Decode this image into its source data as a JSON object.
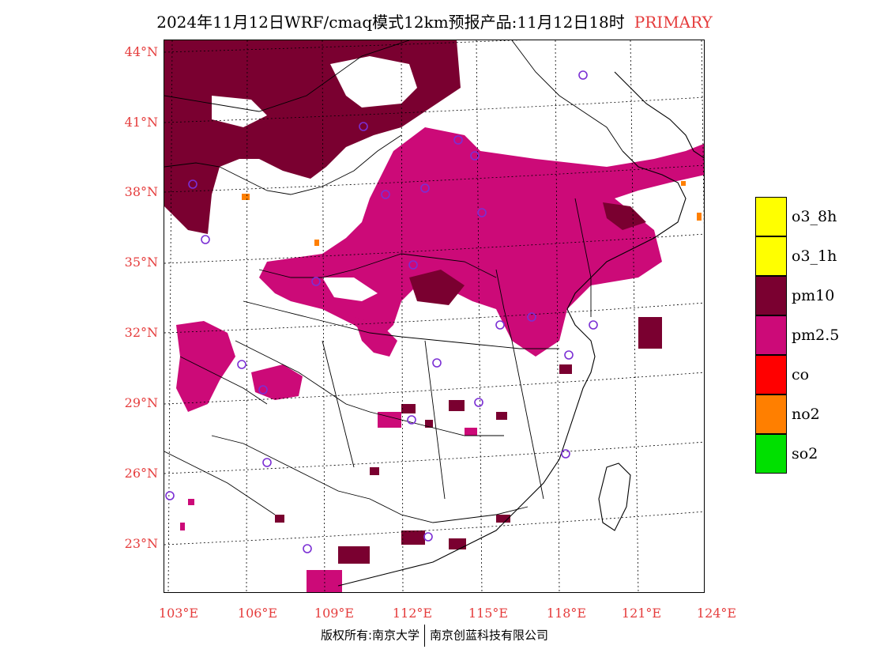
{
  "title": {
    "main": "2024年11月12日WRF/cmaq模式12km预报产品:11月12日18时",
    "tag": "PRIMARY",
    "tag_color": "#e53c3c"
  },
  "axes": {
    "lat_labels": [
      "44°N",
      "41°N",
      "38°N",
      "35°N",
      "32°N",
      "29°N",
      "26°N",
      "23°N"
    ],
    "lon_labels": [
      "103°E",
      "106°E",
      "109°E",
      "112°E",
      "115°E",
      "118°E",
      "121°E",
      "124°E"
    ],
    "label_color": "#e53c3c"
  },
  "legend": [
    {
      "label": "o3_8h",
      "color": "#ffff00"
    },
    {
      "label": "o3_1h",
      "color": "#ffff00"
    },
    {
      "label": "pm10",
      "color": "#7a0030"
    },
    {
      "label": "pm2.5",
      "color": "#cc0a78"
    },
    {
      "label": "co",
      "color": "#ff0000"
    },
    {
      "label": "no2",
      "color": "#ff7f00"
    },
    {
      "label": "so2",
      "color": "#00e000"
    }
  ],
  "footer": {
    "left": "版权所有:南京大学",
    "right": "南京创蓝科技有限公司"
  }
}
